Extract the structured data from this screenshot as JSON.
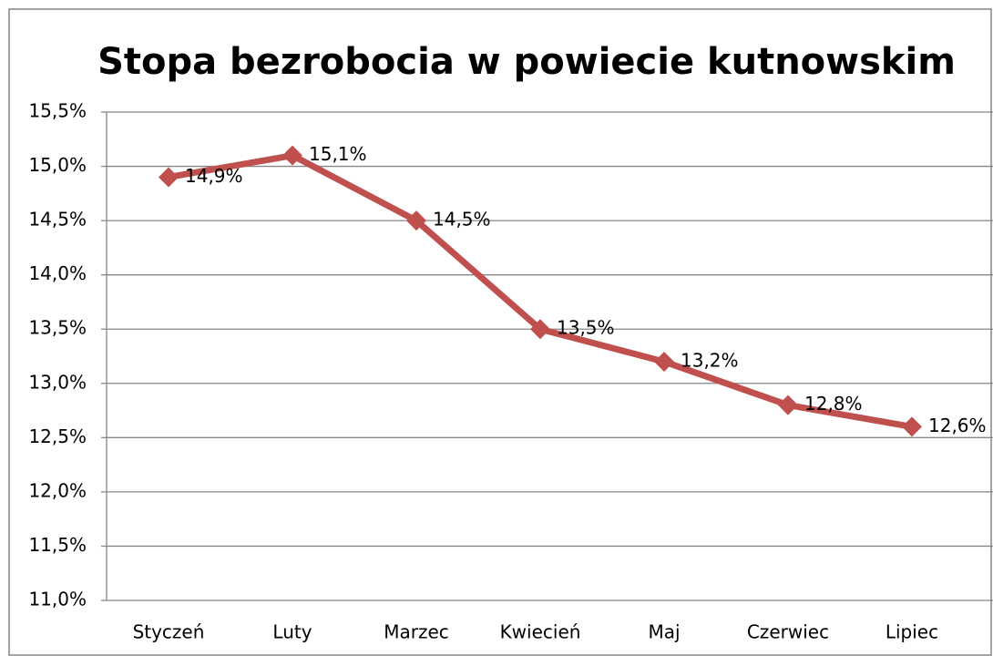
{
  "chart_data": {
    "type": "line",
    "title": "Stopa bezrobocia w powiecie kutnowskim",
    "categories": [
      "Styczeń",
      "Luty",
      "Marzec",
      "Kwiecień",
      "Maj",
      "Czerwiec",
      "Lipiec"
    ],
    "series": [
      {
        "color": "#c0504d",
        "values": [
          14.9,
          15.1,
          14.5,
          13.5,
          13.2,
          12.8,
          12.6
        ],
        "value_labels": [
          "14,9%",
          "15,1%",
          "14,5%",
          "13,5%",
          "13,2%",
          "12,8%",
          "12,6%"
        ]
      }
    ],
    "ylim": [
      11.0,
      15.5
    ],
    "yticks": [
      {
        "value": 11.0,
        "label": "11,0%"
      },
      {
        "value": 11.5,
        "label": "11,5%"
      },
      {
        "value": 12.0,
        "label": "12,0%"
      },
      {
        "value": 12.5,
        "label": "12,5%"
      },
      {
        "value": 13.0,
        "label": "13,0%"
      },
      {
        "value": 13.5,
        "label": "13,5%"
      },
      {
        "value": 14.0,
        "label": "14,0%"
      },
      {
        "value": 14.5,
        "label": "14,5%"
      },
      {
        "value": 15.0,
        "label": "15,0%"
      },
      {
        "value": 15.5,
        "label": "15,5%"
      }
    ],
    "grid": true
  }
}
